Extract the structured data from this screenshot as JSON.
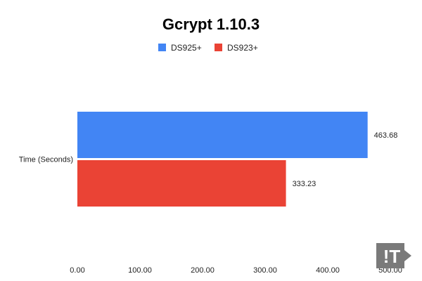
{
  "chart_data": {
    "type": "bar",
    "orientation": "horizontal",
    "title": "Gcrypt 1.10.3",
    "categories": [
      "Time (Seconds)"
    ],
    "series": [
      {
        "name": "DS925+",
        "values": [
          463.68
        ],
        "value_labels": [
          "463.68"
        ],
        "color": "#4285F4"
      },
      {
        "name": "DS923+",
        "values": [
          333.23
        ],
        "value_labels": [
          "333.23"
        ],
        "color": "#EA4335"
      }
    ],
    "xlim": [
      0,
      500
    ],
    "x_ticks": [
      0,
      100,
      200,
      300,
      400,
      500
    ],
    "x_tick_labels": [
      "0.00",
      "100.00",
      "200.00",
      "300.00",
      "400.00",
      "500.00"
    ],
    "grid": false,
    "legend_position": "top-center"
  },
  "watermark": {
    "text": "!T",
    "bg_color": "#7a7a7a"
  }
}
